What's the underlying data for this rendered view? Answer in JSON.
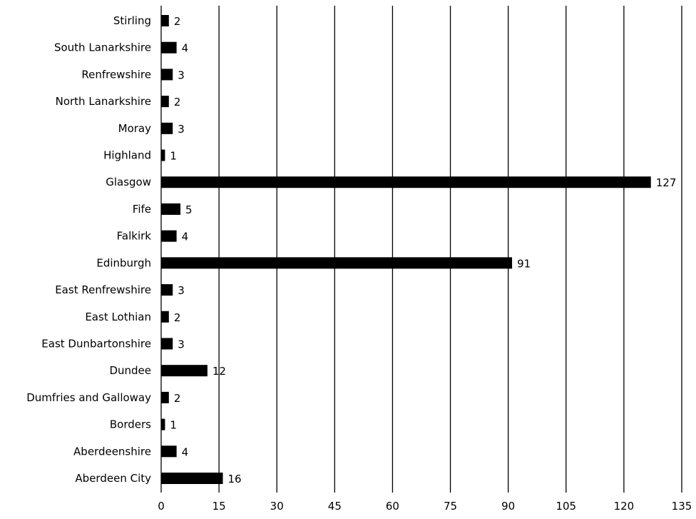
{
  "chart_data": {
    "type": "bar",
    "orientation": "horizontal",
    "categories": [
      "Stirling",
      "South Lanarkshire",
      "Renfrewshire",
      "North Lanarkshire",
      "Moray",
      "Highland",
      "Glasgow",
      "Fife",
      "Falkirk",
      "Edinburgh",
      "East Renfrewshire",
      "East Lothian",
      "East Dunbartonshire",
      "Dundee",
      "Dumfries and Galloway",
      "Borders",
      "Aberdeenshire",
      "Aberdeen City"
    ],
    "values": [
      2,
      4,
      3,
      2,
      3,
      1,
      127,
      5,
      4,
      91,
      3,
      2,
      3,
      12,
      2,
      1,
      4,
      16
    ],
    "xlim": [
      0,
      135
    ],
    "xticks": [
      0,
      15,
      30,
      45,
      60,
      75,
      90,
      105,
      120,
      135
    ],
    "grid": true,
    "data_labels": true,
    "bar_color": "#000000"
  }
}
